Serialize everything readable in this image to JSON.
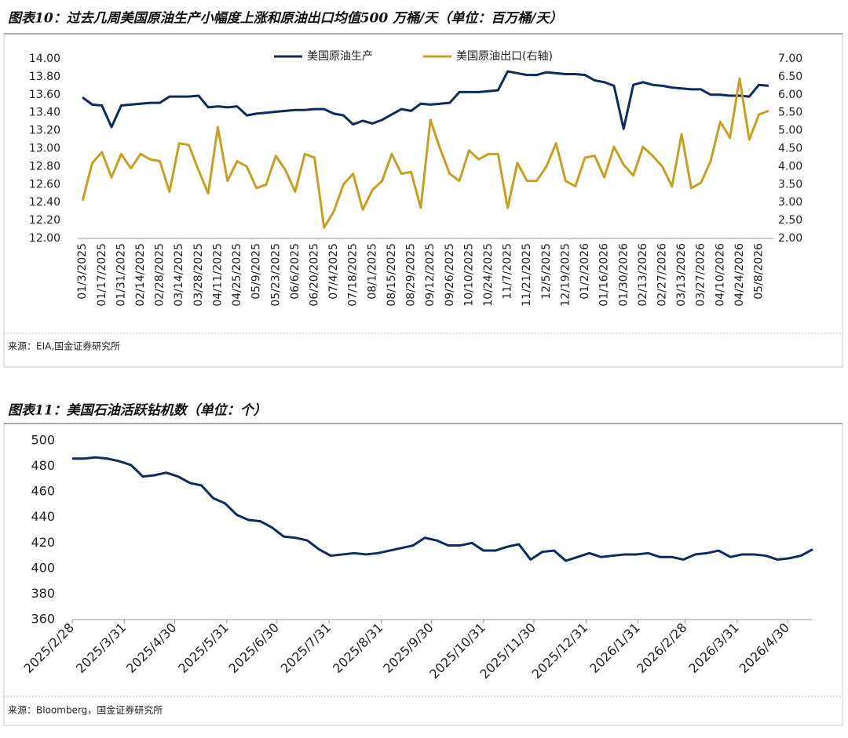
{
  "chart_data": [
    {
      "type": "line",
      "title": "图表10：过去几周美国原油生产小幅度上涨和原油出口均值500 万桶/天（单位：百万桶/天）",
      "source": "来源：EIA,国金证券研究所",
      "categories": [
        "01/3/2025",
        null,
        "01/17/2025",
        null,
        "01/31/2025",
        null,
        "02/14/2025",
        null,
        "02/28/2025",
        null,
        "03/14/2025",
        null,
        "03/28/2025",
        null,
        "04/11/2025",
        null,
        "04/25/2025",
        null,
        "05/9/2025",
        null,
        "05/23/2025",
        null,
        "06/6/2025",
        null,
        "06/20/2025",
        null,
        "07/4/2025",
        null,
        "07/18/2025",
        null,
        "08/1/2025",
        null,
        "08/15/2025",
        null,
        "08/29/2025",
        null,
        "09/12/2025",
        null,
        "09/26/2025",
        null,
        "10/10/2025",
        null,
        "10/24/2025",
        null,
        "11/7/2025",
        null,
        "11/21/2025",
        null,
        "12/5/2025",
        null,
        "12/19/2025",
        null,
        "01/2/2026",
        null,
        "01/16/2026",
        null,
        "01/30/2026",
        null,
        "02/13/2026",
        null,
        "02/27/2026",
        null,
        "03/13/2026",
        null,
        "03/27/2026",
        null,
        "04/10/2026",
        null,
        "04/24/2026",
        null,
        "05/8/2026",
        null
      ],
      "series": [
        {
          "name": "美国原油生产",
          "color": "#0e2a5e",
          "values": [
            13.57,
            13.49,
            13.48,
            13.24,
            13.48,
            13.49,
            13.5,
            13.51,
            13.51,
            13.58,
            13.58,
            13.58,
            13.59,
            13.46,
            13.47,
            13.46,
            13.47,
            13.37,
            13.39,
            13.4,
            13.41,
            13.42,
            13.43,
            13.43,
            13.44,
            13.44,
            13.39,
            13.37,
            13.27,
            13.31,
            13.28,
            13.32,
            13.38,
            13.44,
            13.42,
            13.5,
            13.49,
            13.5,
            13.51,
            13.63,
            13.63,
            13.63,
            13.64,
            13.65,
            13.86,
            13.84,
            13.82,
            13.82,
            13.85,
            13.84,
            13.83,
            13.83,
            13.82,
            13.76,
            13.74,
            13.7,
            13.22,
            13.71,
            13.74,
            13.71,
            13.7,
            13.68,
            13.67,
            13.66,
            13.66,
            13.6,
            13.6,
            13.59,
            13.59,
            13.58,
            13.71,
            13.7
          ]
        },
        {
          "name": "美国原油出口(右轴)",
          "color": "#c8a020",
          "axis": "y2",
          "values": [
            3.05,
            4.1,
            4.4,
            3.7,
            4.35,
            3.95,
            4.35,
            4.2,
            4.15,
            3.3,
            4.65,
            4.6,
            3.9,
            3.25,
            5.1,
            3.6,
            4.15,
            4.0,
            3.4,
            3.5,
            4.3,
            3.9,
            3.3,
            4.35,
            4.25,
            2.3,
            2.75,
            3.5,
            3.8,
            2.8,
            3.35,
            3.6,
            4.35,
            3.8,
            3.85,
            2.85,
            5.3,
            4.5,
            3.8,
            3.6,
            4.45,
            4.2,
            4.35,
            4.35,
            2.85,
            4.1,
            3.6,
            3.6,
            4.0,
            4.65,
            3.6,
            3.45,
            4.25,
            4.3,
            3.7,
            4.55,
            4.05,
            3.75,
            4.55,
            4.3,
            4.0,
            3.45,
            4.9,
            3.4,
            3.55,
            4.15,
            5.25,
            4.8,
            6.45,
            4.75,
            5.45,
            5.55
          ]
        }
      ],
      "ylim": [
        12,
        14
      ],
      "yticks": [
        {
          "value": 12,
          "label": "12.00"
        },
        {
          "value": 12.2,
          "label": "12.20"
        },
        {
          "value": 12.4,
          "label": "12.40"
        },
        {
          "value": 12.6,
          "label": "12.60"
        },
        {
          "value": 12.8,
          "label": "12.80"
        },
        {
          "value": 13,
          "label": "13.00"
        },
        {
          "value": 13.2,
          "label": "13.20"
        },
        {
          "value": 13.4,
          "label": "13.40"
        },
        {
          "value": 13.6,
          "label": "13.60"
        },
        {
          "value": 13.8,
          "label": "13.80"
        },
        {
          "value": 14,
          "label": "14.00"
        }
      ],
      "y2lim": [
        2,
        7
      ],
      "y2ticks": [
        {
          "value": 2,
          "label": "2.00"
        },
        {
          "value": 2.5,
          "label": "2.50"
        },
        {
          "value": 3,
          "label": "3.00"
        },
        {
          "value": 3.5,
          "label": "3.50"
        },
        {
          "value": 4,
          "label": "4.00"
        },
        {
          "value": 4.5,
          "label": "4.50"
        },
        {
          "value": 5,
          "label": "5.00"
        },
        {
          "value": 5.5,
          "label": "5.50"
        },
        {
          "value": 6,
          "label": "6.00"
        },
        {
          "value": 6.5,
          "label": "6.50"
        },
        {
          "value": 7,
          "label": "7.00"
        }
      ],
      "grid": false,
      "legend": "top"
    },
    {
      "type": "line",
      "title": "图表11：美国石油活跃钻机数（单位：个）",
      "source": "来源：Bloomberg，国金证券研究所",
      "x": [
        "2025/2/28",
        "2025/3/7",
        "2025/3/14",
        "2025/3/21",
        "2025/3/28",
        "2025/4/4",
        "2025/4/11",
        "2025/4/18",
        "2025/4/25",
        "2025/5/2",
        "2025/5/9",
        "2025/5/16",
        "2025/5/23",
        "2025/5/30",
        "2025/6/6",
        "2025/6/13",
        "2025/6/20",
        "2025/6/27",
        "2025/7/4",
        "2025/7/11",
        "2025/7/18",
        "2025/7/25",
        "2025/8/1",
        "2025/8/8",
        "2025/8/15",
        "2025/8/22",
        "2025/8/29",
        "2025/9/5",
        "2025/9/12",
        "2025/9/19",
        "2025/9/26",
        "2025/10/3",
        "2025/10/10",
        "2025/10/17",
        "2025/10/24",
        "2025/10/31",
        "2025/11/7",
        "2025/11/14",
        "2025/11/21",
        "2025/11/28",
        "2025/12/5",
        "2025/12/12",
        "2025/12/19",
        "2025/12/26",
        "2026/1/2",
        "2026/1/9",
        "2026/1/16",
        "2026/1/23",
        "2026/1/30",
        "2026/2/6",
        "2026/2/13",
        "2026/2/20",
        "2026/2/27",
        "2026/3/6",
        "2026/3/13",
        "2026/3/20",
        "2026/3/27",
        "2026/4/3",
        "2026/4/10",
        "2026/4/17",
        "2026/4/24",
        "2026/5/1",
        "2026/5/8",
        "2026/5/15"
      ],
      "color": "#0e2a5e",
      "values": [
        486,
        486,
        487,
        486,
        484,
        481,
        472,
        473,
        475,
        472,
        467,
        465,
        455,
        451,
        442,
        438,
        437,
        432,
        425,
        424,
        422,
        415,
        410,
        411,
        412,
        411,
        412,
        414,
        416,
        418,
        424,
        422,
        418,
        418,
        420,
        414,
        414,
        417,
        419,
        407,
        413,
        414,
        406,
        409,
        412,
        409,
        410,
        411,
        411,
        412,
        409,
        409,
        407,
        411,
        412,
        414,
        409,
        411,
        411,
        410,
        407,
        408,
        410,
        415
      ],
      "xlim": [
        "2025/2/28",
        "2026/5/15"
      ],
      "xticks": [
        "2025/2/28",
        "2025/3/31",
        "2025/4/30",
        "2025/5/31",
        "2025/6/30",
        "2025/7/31",
        "2025/8/31",
        "2025/9/30",
        "2025/10/31",
        "2025/11/30",
        "2025/12/31",
        "2026/1/31",
        "2026/2/28",
        "2026/3/31",
        "2026/4/30"
      ],
      "ylim": [
        360,
        500
      ],
      "yticks": [
        360,
        380,
        400,
        420,
        440,
        460,
        480,
        500
      ],
      "grid": false
    }
  ]
}
